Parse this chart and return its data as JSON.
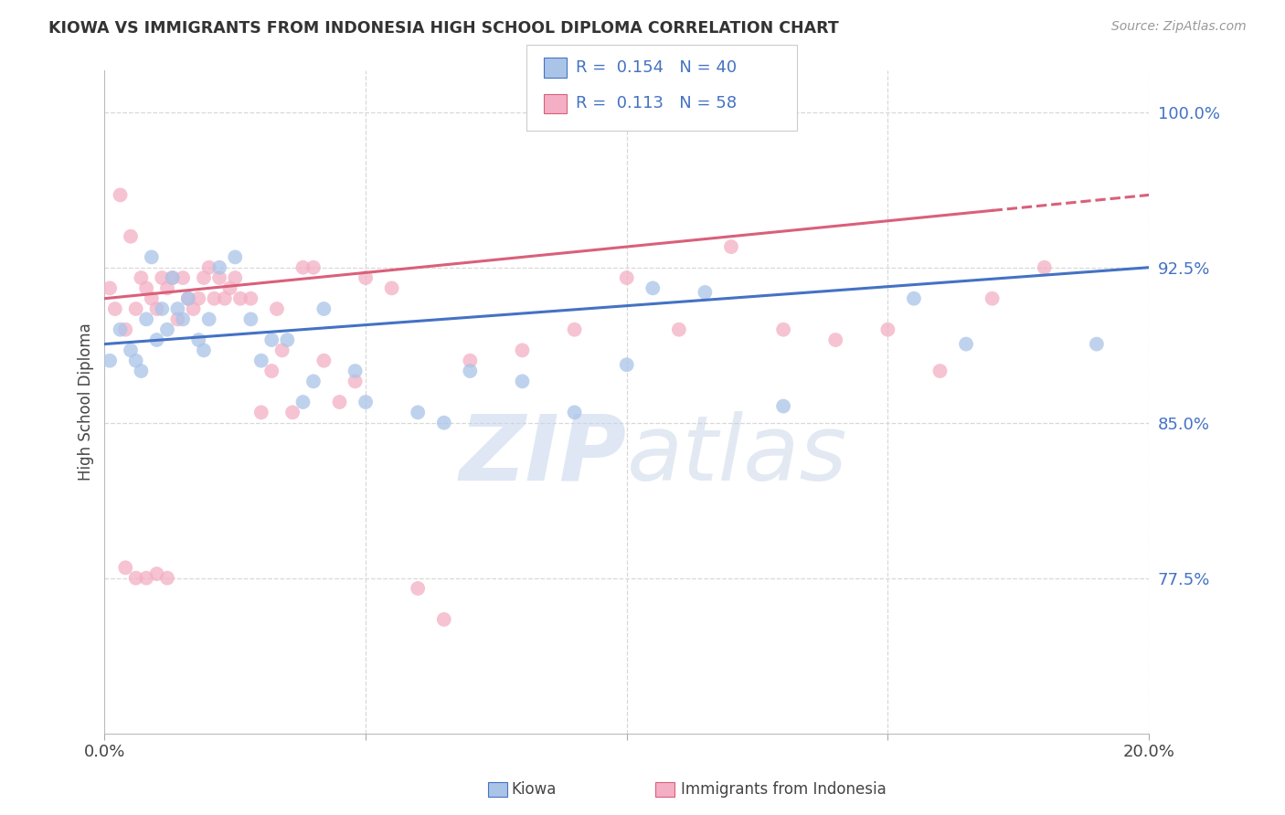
{
  "title": "KIOWA VS IMMIGRANTS FROM INDONESIA HIGH SCHOOL DIPLOMA CORRELATION CHART",
  "source": "Source: ZipAtlas.com",
  "ylabel": "High School Diploma",
  "legend_labels": [
    "Kiowa",
    "Immigrants from Indonesia"
  ],
  "kiowa_R": 0.154,
  "kiowa_N": 40,
  "indonesia_R": 0.113,
  "indonesia_N": 58,
  "xlim": [
    0.0,
    0.2
  ],
  "ylim": [
    0.7,
    1.02
  ],
  "yticks": [
    0.775,
    0.85,
    0.925,
    1.0
  ],
  "ytick_labels": [
    "77.5%",
    "85.0%",
    "92.5%",
    "100.0%"
  ],
  "xticks": [
    0.0,
    0.2
  ],
  "xtick_labels": [
    "0.0%",
    "20.0%"
  ],
  "background_color": "#ffffff",
  "grid_color": "#d8d8d8",
  "kiowa_color": "#aac4e8",
  "indonesia_color": "#f4afc4",
  "kiowa_line_color": "#4472c4",
  "indonesia_line_color": "#d9607a",
  "kiowa_x": [
    0.001,
    0.003,
    0.005,
    0.006,
    0.007,
    0.008,
    0.009,
    0.01,
    0.011,
    0.012,
    0.013,
    0.014,
    0.015,
    0.016,
    0.018,
    0.019,
    0.02,
    0.022,
    0.025,
    0.028,
    0.03,
    0.032,
    0.035,
    0.038,
    0.04,
    0.042,
    0.048,
    0.05,
    0.06,
    0.065,
    0.07,
    0.08,
    0.09,
    0.1,
    0.105,
    0.115,
    0.13,
    0.155,
    0.165,
    0.19
  ],
  "kiowa_y": [
    0.88,
    0.895,
    0.885,
    0.88,
    0.875,
    0.9,
    0.93,
    0.89,
    0.905,
    0.895,
    0.92,
    0.905,
    0.9,
    0.91,
    0.89,
    0.885,
    0.9,
    0.925,
    0.93,
    0.9,
    0.88,
    0.89,
    0.89,
    0.86,
    0.87,
    0.905,
    0.875,
    0.86,
    0.855,
    0.85,
    0.875,
    0.87,
    0.855,
    0.878,
    0.915,
    0.913,
    0.858,
    0.91,
    0.888,
    0.888
  ],
  "indonesia_x": [
    0.001,
    0.002,
    0.003,
    0.004,
    0.005,
    0.006,
    0.007,
    0.008,
    0.009,
    0.01,
    0.011,
    0.012,
    0.013,
    0.014,
    0.015,
    0.016,
    0.017,
    0.018,
    0.019,
    0.02,
    0.021,
    0.022,
    0.023,
    0.024,
    0.025,
    0.026,
    0.028,
    0.03,
    0.032,
    0.033,
    0.034,
    0.036,
    0.038,
    0.04,
    0.042,
    0.045,
    0.048,
    0.05,
    0.055,
    0.06,
    0.065,
    0.07,
    0.08,
    0.09,
    0.1,
    0.11,
    0.12,
    0.13,
    0.14,
    0.15,
    0.16,
    0.17,
    0.18,
    0.004,
    0.006,
    0.008,
    0.01,
    0.012
  ],
  "indonesia_y": [
    0.915,
    0.905,
    0.96,
    0.895,
    0.94,
    0.905,
    0.92,
    0.915,
    0.91,
    0.905,
    0.92,
    0.915,
    0.92,
    0.9,
    0.92,
    0.91,
    0.905,
    0.91,
    0.92,
    0.925,
    0.91,
    0.92,
    0.91,
    0.915,
    0.92,
    0.91,
    0.91,
    0.855,
    0.875,
    0.905,
    0.885,
    0.855,
    0.925,
    0.925,
    0.88,
    0.86,
    0.87,
    0.92,
    0.915,
    0.77,
    0.755,
    0.88,
    0.885,
    0.895,
    0.92,
    0.895,
    0.935,
    0.895,
    0.89,
    0.895,
    0.875,
    0.91,
    0.925,
    0.78,
    0.775,
    0.775,
    0.777,
    0.775
  ]
}
